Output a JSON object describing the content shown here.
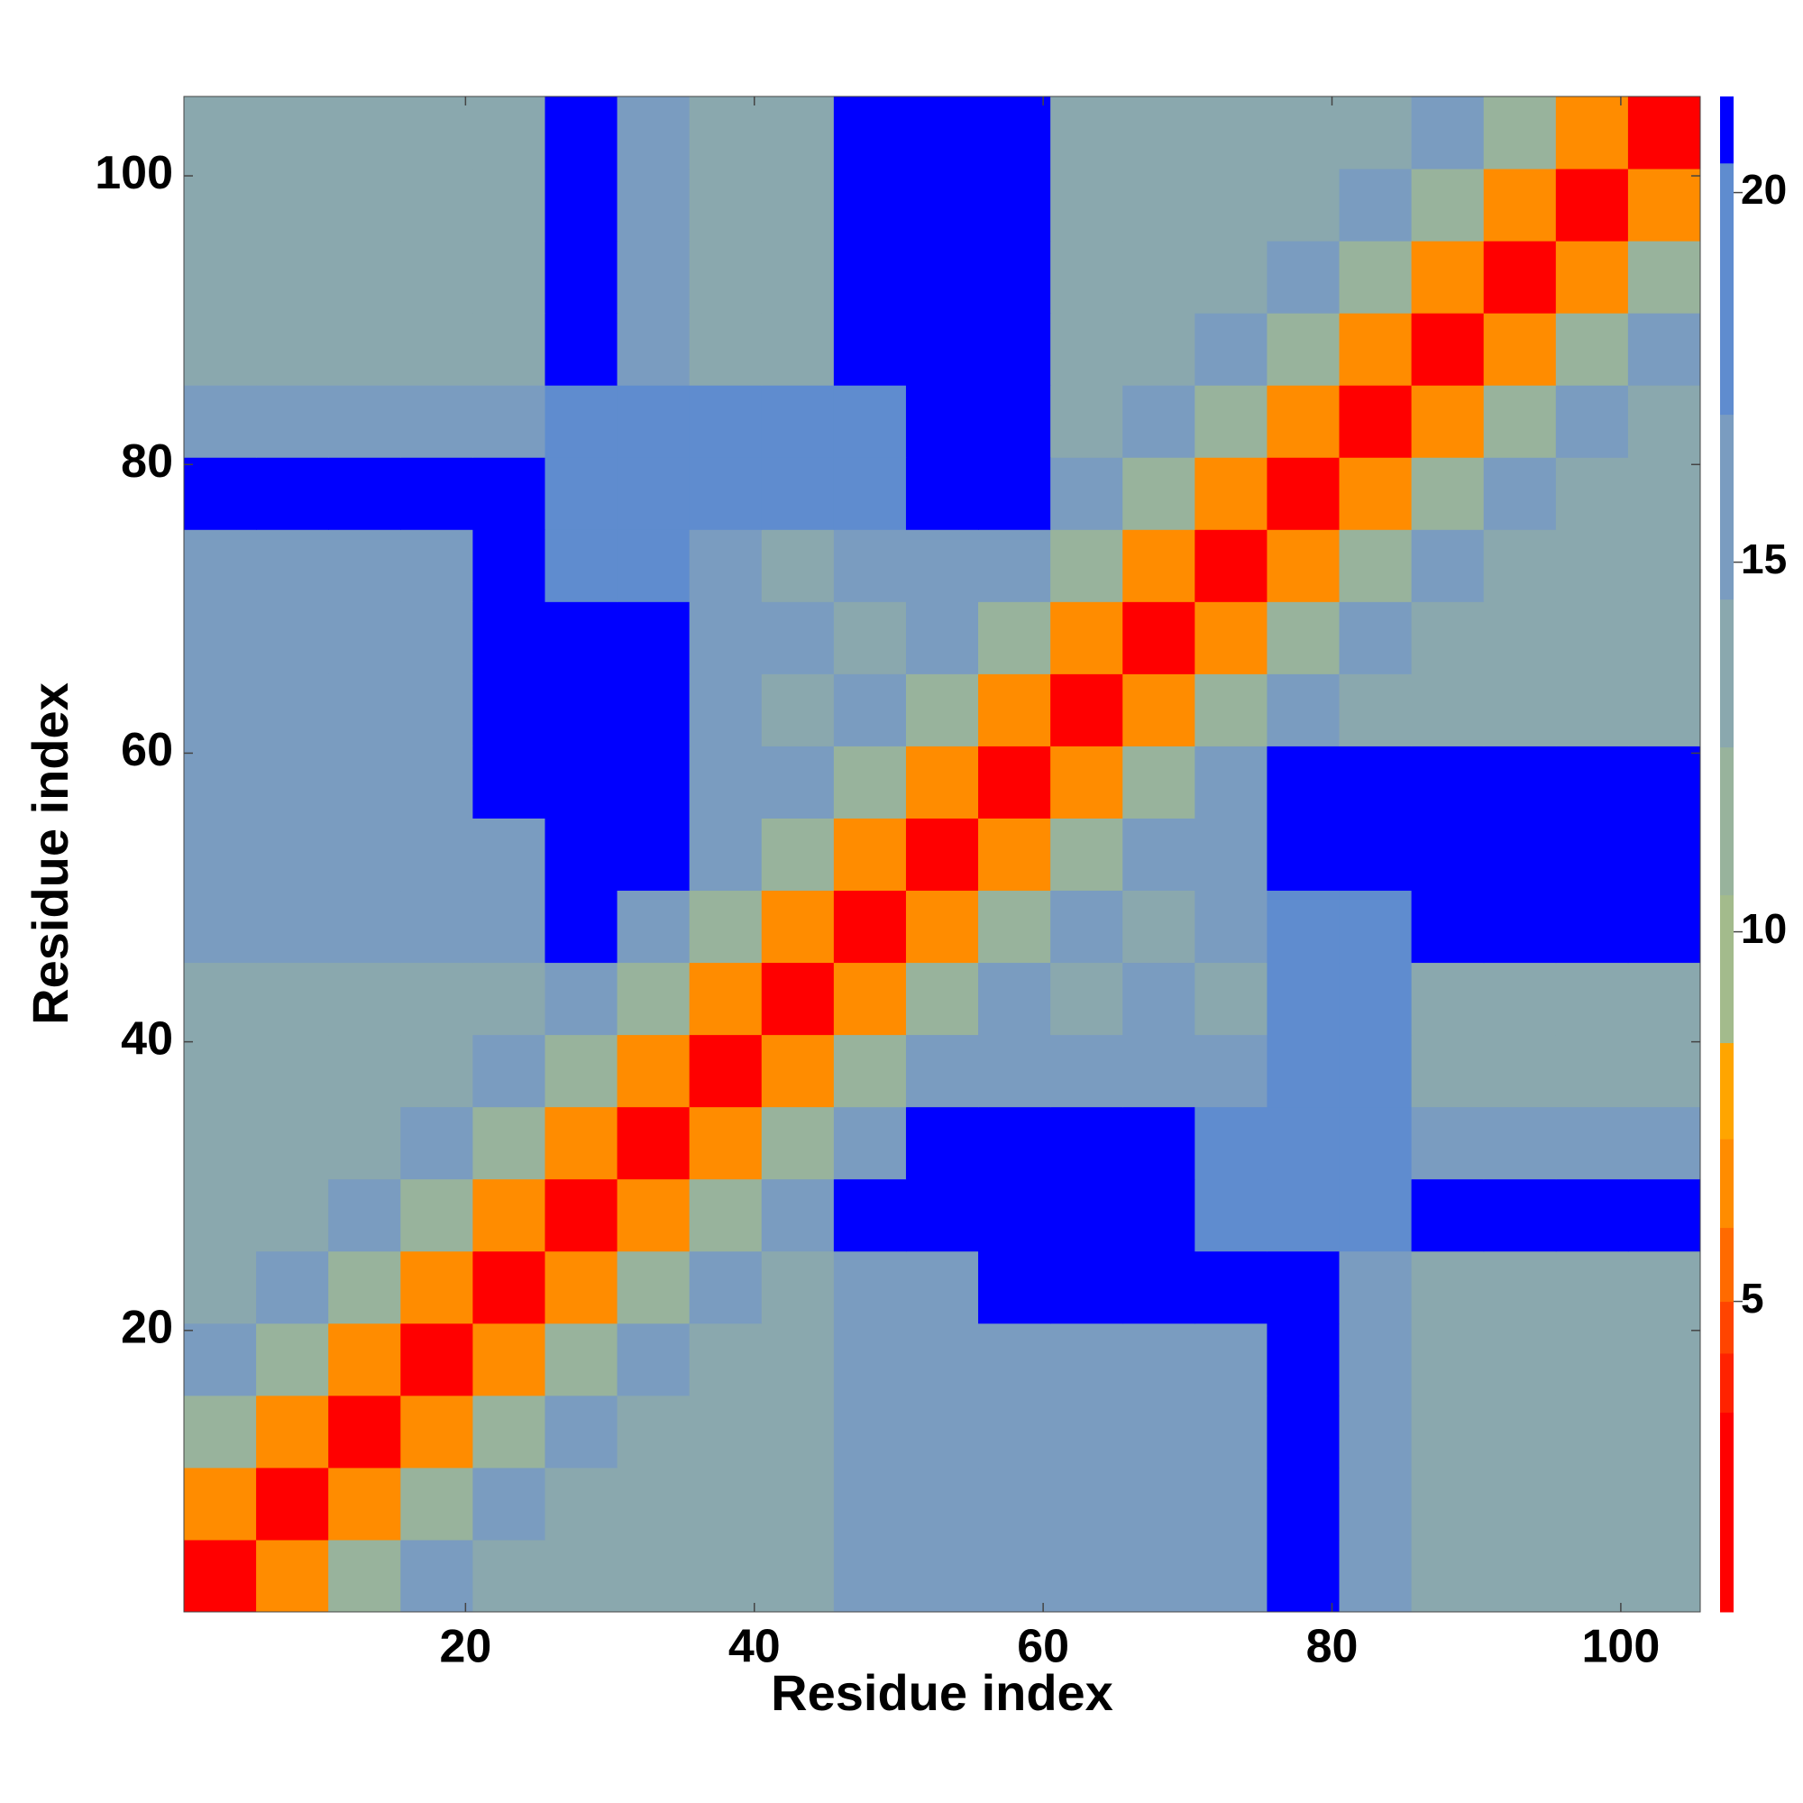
{
  "chart_data": {
    "type": "heatmap",
    "xlabel": "Residue index",
    "ylabel": "Residue index",
    "x": [
      3,
      8,
      13,
      18,
      23,
      28,
      33,
      38,
      43,
      48,
      53,
      58,
      63,
      68,
      73,
      78,
      83,
      88,
      93,
      98,
      103
    ],
    "y": [
      3,
      8,
      13,
      18,
      23,
      28,
      33,
      38,
      43,
      48,
      53,
      58,
      63,
      68,
      73,
      78,
      83,
      88,
      93,
      98,
      103
    ],
    "z": [
      [
        2,
        6,
        11,
        15,
        14,
        14,
        14,
        14,
        14,
        15,
        15,
        16,
        16,
        16,
        16,
        21,
        15,
        13,
        13,
        13,
        13
      ],
      [
        6,
        2,
        6,
        11,
        15,
        14,
        14,
        14,
        14,
        15,
        15,
        16,
        16,
        16,
        16,
        21,
        15,
        13,
        13,
        13,
        13
      ],
      [
        11,
        6,
        2,
        6,
        11,
        15,
        14,
        14,
        14,
        15,
        15,
        16,
        16,
        16,
        16,
        21,
        15,
        13,
        13,
        13,
        13
      ],
      [
        15,
        11,
        6,
        2,
        6,
        11,
        15,
        14,
        14,
        15,
        15,
        16,
        16,
        16,
        16,
        21,
        15,
        13,
        13,
        13,
        13
      ],
      [
        14,
        15,
        11,
        6,
        2,
        6,
        11,
        15,
        14,
        15,
        15,
        21,
        21,
        21,
        21,
        21,
        15,
        13,
        13,
        13,
        13
      ],
      [
        14,
        14,
        15,
        11,
        6,
        2,
        6,
        11,
        15,
        21,
        21,
        21,
        21,
        21,
        17,
        17,
        17,
        21,
        21,
        21,
        21
      ],
      [
        14,
        14,
        14,
        15,
        11,
        6,
        2,
        6,
        11,
        15,
        21,
        21,
        21,
        21,
        17,
        17,
        17,
        16,
        16,
        16,
        16
      ],
      [
        14,
        14,
        14,
        14,
        15,
        11,
        6,
        2,
        6,
        11,
        15,
        16,
        16,
        16,
        16,
        17,
        17,
        14,
        14,
        14,
        14
      ],
      [
        14,
        14,
        14,
        14,
        14,
        15,
        11,
        6,
        2,
        6,
        11,
        15,
        14,
        15,
        14,
        17,
        17,
        14,
        14,
        14,
        14
      ],
      [
        15,
        15,
        15,
        15,
        15,
        21,
        15,
        11,
        6,
        2,
        6,
        11,
        15,
        14,
        16,
        17,
        17,
        21,
        21,
        21,
        21
      ],
      [
        15,
        15,
        15,
        15,
        15,
        21,
        21,
        15,
        11,
        6,
        2,
        6,
        11,
        15,
        15,
        21,
        21,
        21,
        21,
        21,
        21
      ],
      [
        16,
        16,
        16,
        16,
        21,
        21,
        21,
        16,
        15,
        11,
        6,
        2,
        6,
        11,
        15,
        21,
        21,
        21,
        21,
        21,
        21
      ],
      [
        16,
        16,
        16,
        16,
        21,
        21,
        21,
        16,
        14,
        15,
        11,
        6,
        2,
        6,
        11,
        15,
        14,
        14,
        14,
        14,
        14
      ],
      [
        16,
        16,
        16,
        16,
        21,
        21,
        21,
        16,
        15,
        14,
        15,
        11,
        6,
        2,
        6,
        11,
        15,
        14,
        14,
        14,
        14
      ],
      [
        16,
        16,
        16,
        16,
        21,
        17,
        17,
        16,
        14,
        16,
        15,
        15,
        11,
        6,
        2,
        6,
        11,
        15,
        14,
        14,
        14
      ],
      [
        21,
        21,
        21,
        21,
        21,
        17,
        17,
        17,
        17,
        17,
        21,
        21,
        15,
        11,
        6,
        2,
        6,
        11,
        15,
        14,
        14
      ],
      [
        15,
        15,
        15,
        15,
        15,
        17,
        17,
        17,
        17,
        17,
        21,
        21,
        14,
        15,
        11,
        6,
        2,
        6,
        11,
        15,
        14
      ],
      [
        13,
        13,
        13,
        13,
        13,
        21,
        16,
        14,
        14,
        21,
        21,
        21,
        14,
        14,
        15,
        11,
        6,
        2,
        6,
        11,
        15
      ],
      [
        13,
        13,
        13,
        13,
        13,
        21,
        16,
        14,
        14,
        21,
        21,
        21,
        14,
        14,
        14,
        15,
        11,
        6,
        2,
        6,
        11
      ],
      [
        13,
        13,
        13,
        13,
        13,
        21,
        16,
        14,
        14,
        21,
        21,
        21,
        14,
        14,
        14,
        14,
        15,
        11,
        6,
        2,
        6
      ],
      [
        13,
        13,
        13,
        13,
        13,
        21,
        16,
        14,
        14,
        21,
        21,
        21,
        14,
        14,
        14,
        14,
        14,
        15,
        11,
        6,
        2
      ]
    ],
    "xlim": [
      0.5,
      105.5
    ],
    "ylim": [
      0.5,
      105.5
    ],
    "xticks": [
      20,
      40,
      60,
      80,
      100
    ],
    "yticks": [
      20,
      40,
      60,
      80,
      100
    ],
    "colorbar": {
      "lim": [
        0.8,
        21.3
      ],
      "ticks": [
        5,
        10,
        15,
        20
      ],
      "levels": [
        0.8,
        3.5,
        4.3,
        5,
        6,
        7.2,
        8.5,
        10.5,
        12.5,
        14.5,
        17,
        20.4,
        21.3
      ],
      "colors": [
        "#ff0000",
        "#ff2200",
        "#ff4400",
        "#ff6a00",
        "#ff8c00",
        "#ffa500",
        "#a3bb8c",
        "#98b39c",
        "#8aa8ae",
        "#7a9cc0",
        "#5f8ccf",
        "#0000ff"
      ]
    }
  }
}
